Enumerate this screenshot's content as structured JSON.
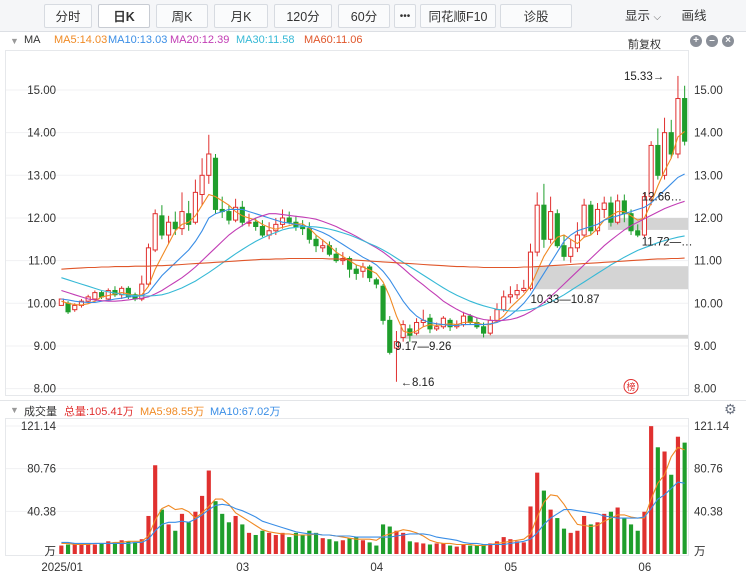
{
  "tabs": [
    {
      "label": "分时",
      "active": false
    },
    {
      "label": "日K",
      "active": true
    },
    {
      "label": "周K",
      "active": false
    },
    {
      "label": "月K",
      "active": false
    },
    {
      "label": "120分",
      "active": false
    },
    {
      "label": "60分",
      "active": false
    },
    {
      "label": "•••",
      "active": false
    },
    {
      "label": "同花顺F10",
      "active": false
    },
    {
      "label": "诊股",
      "active": false
    }
  ],
  "toolbar": {
    "display_label": "显示",
    "draw_label": "画线"
  },
  "price_panel": {
    "indicator": "MA",
    "ma_items": [
      {
        "label": "MA5:14.03",
        "color": "#f08a24"
      },
      {
        "label": "MA10:13.03",
        "color": "#3a8ee6"
      },
      {
        "label": "MA20:12.39",
        "color": "#c23db5"
      },
      {
        "label": "MA30:11.58",
        "color": "#36b9d6"
      },
      {
        "label": "MA60:11.06",
        "color": "#e0562a"
      }
    ],
    "adjust_label": "前复权",
    "y_ticks": [
      "15.00",
      "14.00",
      "13.00",
      "12.00",
      "11.00",
      "10.00",
      "9.00",
      "8.00"
    ],
    "annotations": [
      {
        "text": "15.33→"
      },
      {
        "text": "12.66…"
      },
      {
        "text": "11.72—…"
      },
      {
        "text": "10.33—10.87"
      },
      {
        "text": "9.17—9.26"
      },
      {
        "text": "←8.16"
      }
    ],
    "tag": "榜"
  },
  "volume_panel": {
    "title": "成交量",
    "items": [
      {
        "label": "总量:105.41万",
        "color": "#e0302f"
      },
      {
        "label": "MA5:98.55万",
        "color": "#f08a24"
      },
      {
        "label": "MA10:67.02万",
        "color": "#3a8ee6"
      }
    ],
    "y_ticks": [
      "121.14",
      "80.76",
      "40.38"
    ],
    "unit": "万"
  },
  "x_axis": {
    "labels": [
      "2025/01",
      "03",
      "04",
      "05",
      "06"
    ]
  },
  "colors": {
    "up": "#e0302f",
    "down": "#1f9e2c",
    "ma5": "#f08a24",
    "ma10": "#3a8ee6",
    "ma20": "#c23db5",
    "ma30": "#36b9d6",
    "ma60": "#e0562a"
  },
  "chart_data": {
    "type": "candlestick",
    "price_range": [
      7.85,
      15.75
    ],
    "volume_max": 121.14,
    "candles": [
      [
        9.95,
        10.1,
        9.95,
        10.1,
        8
      ],
      [
        10.0,
        9.8,
        9.75,
        10.05,
        9
      ],
      [
        9.85,
        9.95,
        9.8,
        10.0,
        10
      ],
      [
        9.95,
        10.05,
        9.9,
        10.1,
        9
      ],
      [
        10.05,
        10.15,
        10.0,
        10.2,
        10
      ],
      [
        10.1,
        10.25,
        10.1,
        10.3,
        9
      ],
      [
        10.25,
        10.15,
        10.1,
        10.3,
        10
      ],
      [
        10.1,
        10.3,
        10.05,
        10.35,
        12
      ],
      [
        10.3,
        10.2,
        10.15,
        10.4,
        11
      ],
      [
        10.2,
        10.35,
        10.1,
        10.4,
        13
      ],
      [
        10.35,
        10.15,
        10.1,
        10.4,
        12
      ],
      [
        10.2,
        10.1,
        10.05,
        10.25,
        11
      ],
      [
        10.1,
        10.45,
        10.05,
        10.65,
        14
      ],
      [
        10.45,
        11.3,
        10.4,
        11.4,
        36
      ],
      [
        11.25,
        12.1,
        11.2,
        12.2,
        84
      ],
      [
        12.05,
        11.6,
        11.5,
        12.3,
        42
      ],
      [
        11.6,
        11.9,
        11.4,
        12.05,
        28
      ],
      [
        11.9,
        11.75,
        11.6,
        12.15,
        22
      ],
      [
        11.75,
        12.15,
        11.6,
        12.6,
        38
      ],
      [
        12.1,
        11.85,
        11.7,
        12.4,
        30
      ],
      [
        11.9,
        12.6,
        11.85,
        12.9,
        40
      ],
      [
        12.55,
        13.0,
        12.3,
        13.4,
        55
      ],
      [
        13.0,
        13.5,
        12.8,
        13.95,
        79
      ],
      [
        13.4,
        12.2,
        12.1,
        13.5,
        50
      ],
      [
        12.2,
        12.15,
        12.0,
        12.5,
        38
      ],
      [
        12.15,
        11.95,
        11.85,
        12.3,
        30
      ],
      [
        11.95,
        12.25,
        11.9,
        12.45,
        36
      ],
      [
        12.25,
        11.9,
        11.8,
        12.4,
        28
      ],
      [
        11.9,
        11.9,
        11.8,
        12.1,
        20
      ],
      [
        11.9,
        11.8,
        11.7,
        12.0,
        18
      ],
      [
        11.8,
        11.6,
        11.55,
        11.95,
        22
      ],
      [
        11.6,
        11.7,
        11.5,
        11.9,
        20
      ],
      [
        11.7,
        11.85,
        11.6,
        12.0,
        18
      ],
      [
        11.85,
        12.0,
        11.75,
        12.2,
        20
      ],
      [
        12.0,
        11.9,
        11.85,
        12.15,
        16
      ],
      [
        11.9,
        11.8,
        11.7,
        12.05,
        20
      ],
      [
        11.8,
        11.75,
        11.6,
        11.95,
        18
      ],
      [
        11.75,
        11.5,
        11.4,
        11.9,
        22
      ],
      [
        11.5,
        11.35,
        11.2,
        11.6,
        20
      ],
      [
        11.3,
        11.35,
        11.2,
        11.5,
        15
      ],
      [
        11.35,
        11.15,
        11.1,
        11.45,
        14
      ],
      [
        11.15,
        11.0,
        10.95,
        11.3,
        12
      ],
      [
        11.0,
        11.05,
        10.9,
        11.2,
        13
      ],
      [
        11.05,
        10.8,
        10.6,
        11.1,
        15
      ],
      [
        10.8,
        10.7,
        10.55,
        10.9,
        16
      ],
      [
        10.75,
        10.85,
        10.6,
        10.95,
        13
      ],
      [
        10.85,
        10.6,
        10.5,
        10.9,
        11
      ],
      [
        10.55,
        10.45,
        10.35,
        10.6,
        8
      ],
      [
        10.4,
        9.6,
        9.5,
        10.45,
        28
      ],
      [
        9.6,
        8.85,
        8.8,
        9.7,
        26
      ],
      [
        8.95,
        9.1,
        8.16,
        9.35,
        22
      ],
      [
        9.2,
        9.5,
        9.1,
        9.6,
        20
      ],
      [
        9.4,
        9.25,
        9.1,
        9.5,
        12
      ],
      [
        9.3,
        9.55,
        9.25,
        9.65,
        11
      ],
      [
        9.55,
        9.6,
        9.45,
        9.85,
        10
      ],
      [
        9.65,
        9.4,
        9.3,
        9.75,
        9
      ],
      [
        9.4,
        9.45,
        9.35,
        9.55,
        10
      ],
      [
        9.45,
        9.65,
        9.4,
        9.7,
        10
      ],
      [
        9.6,
        9.45,
        9.35,
        9.65,
        8
      ],
      [
        9.45,
        9.5,
        9.4,
        9.6,
        7
      ],
      [
        9.5,
        9.7,
        9.45,
        9.8,
        9
      ],
      [
        9.7,
        9.55,
        9.5,
        9.75,
        8
      ],
      [
        9.55,
        9.45,
        9.4,
        9.65,
        8
      ],
      [
        9.45,
        9.3,
        9.2,
        9.55,
        9
      ],
      [
        9.3,
        9.6,
        9.25,
        9.7,
        10
      ],
      [
        9.6,
        9.85,
        9.55,
        10.0,
        12
      ],
      [
        9.85,
        10.15,
        9.8,
        10.3,
        16
      ],
      [
        10.15,
        10.2,
        10.0,
        10.4,
        14
      ],
      [
        10.2,
        10.3,
        10.1,
        10.45,
        12
      ],
      [
        10.3,
        10.35,
        10.25,
        10.55,
        11
      ],
      [
        10.35,
        11.2,
        10.3,
        11.4,
        45
      ],
      [
        11.2,
        12.3,
        11.1,
        12.6,
        77
      ],
      [
        12.3,
        11.5,
        11.3,
        12.8,
        60
      ],
      [
        11.5,
        12.15,
        11.4,
        12.5,
        42
      ],
      [
        12.1,
        11.35,
        11.3,
        12.2,
        34
      ],
      [
        11.35,
        11.1,
        11.0,
        11.6,
        24
      ],
      [
        11.1,
        11.3,
        10.95,
        11.5,
        20
      ],
      [
        11.3,
        11.6,
        11.2,
        11.9,
        22
      ],
      [
        11.6,
        12.3,
        11.55,
        12.45,
        36
      ],
      [
        12.3,
        11.7,
        11.6,
        12.4,
        28
      ],
      [
        11.7,
        12.2,
        11.6,
        12.35,
        30
      ],
      [
        12.2,
        12.35,
        12.0,
        12.5,
        38
      ],
      [
        12.35,
        11.9,
        11.8,
        12.5,
        40
      ],
      [
        11.9,
        12.4,
        11.85,
        12.55,
        44
      ],
      [
        12.4,
        12.1,
        11.9,
        12.55,
        34
      ],
      [
        12.1,
        11.7,
        11.6,
        12.2,
        28
      ],
      [
        11.7,
        11.6,
        11.55,
        11.85,
        22
      ],
      [
        11.6,
        12.5,
        11.55,
        12.6,
        40
      ],
      [
        12.5,
        13.7,
        12.3,
        13.8,
        121
      ],
      [
        13.7,
        13.0,
        12.9,
        14.1,
        101
      ],
      [
        13.0,
        14.0,
        12.9,
        14.35,
        97
      ],
      [
        14.0,
        13.5,
        13.4,
        14.3,
        75
      ],
      [
        13.5,
        14.8,
        13.4,
        15.33,
        111
      ],
      [
        14.8,
        13.8,
        13.7,
        15.1,
        105.41
      ]
    ],
    "ma_series": {
      "ma5": [
        10.05,
        10.0,
        9.97,
        9.96,
        9.99,
        10.05,
        10.15,
        10.18,
        10.22,
        10.25,
        10.22,
        10.18,
        10.2,
        10.4,
        10.8,
        11.1,
        11.4,
        11.7,
        11.85,
        11.9,
        12.05,
        12.3,
        12.55,
        12.5,
        12.4,
        12.3,
        12.15,
        12.05,
        12.0,
        11.95,
        11.85,
        11.78,
        11.74,
        11.78,
        11.82,
        11.86,
        11.86,
        11.76,
        11.6,
        11.48,
        11.35,
        11.2,
        11.1,
        11.0,
        10.9,
        10.85,
        10.78,
        10.7,
        10.5,
        10.15,
        9.7,
        9.35,
        9.3,
        9.35,
        9.45,
        9.5,
        9.48,
        9.5,
        9.52,
        9.5,
        9.55,
        9.56,
        9.54,
        9.5,
        9.5,
        9.58,
        9.7,
        9.9,
        10.05,
        10.2,
        10.4,
        10.75,
        11.1,
        11.35,
        11.55,
        11.6,
        11.5,
        11.4,
        11.55,
        11.6,
        11.75,
        11.95,
        12.05,
        12.15,
        12.15,
        12.05,
        11.95,
        12.0,
        12.35,
        12.75,
        13.1,
        13.4,
        13.9,
        14.03
      ],
      "ma10": [
        10.1,
        10.08,
        10.05,
        10.03,
        10.02,
        10.02,
        10.05,
        10.07,
        10.1,
        10.12,
        10.15,
        10.16,
        10.18,
        10.25,
        10.45,
        10.65,
        10.8,
        10.95,
        11.1,
        11.25,
        11.45,
        11.7,
        12.0,
        12.1,
        12.15,
        12.2,
        12.2,
        12.2,
        12.15,
        12.1,
        12.05,
        12.0,
        11.95,
        11.9,
        11.88,
        11.85,
        11.82,
        11.78,
        11.72,
        11.66,
        11.58,
        11.48,
        11.38,
        11.28,
        11.18,
        11.08,
        11.0,
        10.9,
        10.75,
        10.55,
        10.3,
        10.05,
        9.85,
        9.7,
        9.6,
        9.55,
        9.52,
        9.5,
        9.48,
        9.48,
        9.5,
        9.5,
        9.5,
        9.5,
        9.52,
        9.55,
        9.62,
        9.72,
        9.85,
        10.0,
        10.2,
        10.45,
        10.7,
        10.95,
        11.2,
        11.45,
        11.6,
        11.7,
        11.75,
        11.8,
        11.85,
        11.95,
        12.0,
        12.05,
        12.1,
        12.15,
        12.2,
        12.25,
        12.35,
        12.5,
        12.65,
        12.8,
        12.95,
        13.03
      ],
      "ma20": [
        10.3,
        10.25,
        10.2,
        10.15,
        10.1,
        10.08,
        10.06,
        10.05,
        10.05,
        10.06,
        10.08,
        10.1,
        10.12,
        10.15,
        10.22,
        10.3,
        10.4,
        10.5,
        10.6,
        10.72,
        10.85,
        11.0,
        11.15,
        11.3,
        11.45,
        11.6,
        11.72,
        11.82,
        11.92,
        12.0,
        12.05,
        12.1,
        12.1,
        12.08,
        12.06,
        12.04,
        12.02,
        12.0,
        11.97,
        11.92,
        11.86,
        11.8,
        11.72,
        11.65,
        11.57,
        11.48,
        11.39,
        11.3,
        11.2,
        11.08,
        10.95,
        10.82,
        10.68,
        10.55,
        10.43,
        10.3,
        10.18,
        10.05,
        9.95,
        9.86,
        9.78,
        9.72,
        9.66,
        9.62,
        9.6,
        9.59,
        9.6,
        9.62,
        9.66,
        9.72,
        9.8,
        9.9,
        10.02,
        10.16,
        10.3,
        10.45,
        10.6,
        10.75,
        10.9,
        11.05,
        11.2,
        11.35,
        11.48,
        11.6,
        11.72,
        11.82,
        11.9,
        11.98,
        12.06,
        12.14,
        12.22,
        12.28,
        12.34,
        12.39
      ],
      "ma30": [
        10.6,
        10.55,
        10.5,
        10.45,
        10.4,
        10.35,
        10.3,
        10.27,
        10.24,
        10.21,
        10.19,
        10.18,
        10.17,
        10.17,
        10.18,
        10.2,
        10.24,
        10.3,
        10.36,
        10.44,
        10.52,
        10.62,
        10.72,
        10.83,
        10.94,
        11.05,
        11.16,
        11.26,
        11.36,
        11.45,
        11.53,
        11.6,
        11.66,
        11.72,
        11.76,
        11.78,
        11.8,
        11.8,
        11.79,
        11.77,
        11.74,
        11.7,
        11.65,
        11.6,
        11.54,
        11.47,
        11.4,
        11.33,
        11.25,
        11.16,
        11.06,
        10.96,
        10.86,
        10.76,
        10.66,
        10.56,
        10.46,
        10.36,
        10.27,
        10.19,
        10.12,
        10.05,
        9.99,
        9.94,
        9.9,
        9.86,
        9.84,
        9.82,
        9.82,
        9.83,
        9.86,
        9.9,
        9.96,
        10.03,
        10.11,
        10.2,
        10.3,
        10.4,
        10.5,
        10.6,
        10.7,
        10.8,
        10.9,
        10.99,
        11.08,
        11.16,
        11.24,
        11.3,
        11.36,
        11.42,
        11.47,
        11.51,
        11.55,
        11.58
      ],
      "ma60": [
        10.8,
        10.81,
        10.82,
        10.83,
        10.84,
        10.84,
        10.85,
        10.85,
        10.86,
        10.86,
        10.86,
        10.87,
        10.87,
        10.87,
        10.88,
        10.88,
        10.89,
        10.9,
        10.91,
        10.92,
        10.93,
        10.94,
        10.95,
        10.96,
        10.97,
        10.98,
        10.99,
        11.0,
        11.01,
        11.02,
        11.03,
        11.03,
        11.04,
        11.04,
        11.05,
        11.05,
        11.05,
        11.05,
        11.05,
        11.05,
        11.04,
        11.04,
        11.03,
        11.02,
        11.01,
        11.0,
        10.99,
        10.98,
        10.97,
        10.96,
        10.95,
        10.94,
        10.93,
        10.92,
        10.91,
        10.9,
        10.89,
        10.88,
        10.87,
        10.86,
        10.86,
        10.85,
        10.85,
        10.84,
        10.84,
        10.84,
        10.84,
        10.84,
        10.84,
        10.85,
        10.85,
        10.86,
        10.87,
        10.88,
        10.89,
        10.9,
        10.91,
        10.92,
        10.93,
        10.94,
        10.95,
        10.96,
        10.97,
        10.98,
        10.99,
        11.0,
        11.01,
        11.02,
        11.03,
        11.04,
        11.04,
        11.05,
        11.05,
        11.06
      ]
    },
    "volume_ma5": [
      10,
      10,
      9,
      9,
      9,
      10,
      10,
      10,
      11,
      11,
      12,
      12,
      12,
      17,
      32,
      43,
      46,
      42,
      43,
      40,
      34,
      39,
      45,
      52,
      52,
      47,
      39,
      35,
      31,
      27,
      23,
      21,
      20,
      19,
      19,
      18,
      18,
      18,
      19,
      18,
      18,
      17,
      16,
      15,
      14,
      14,
      14,
      13,
      17,
      19,
      21,
      23,
      22,
      20,
      17,
      13,
      11,
      10,
      10,
      9,
      9,
      9,
      8,
      8,
      9,
      10,
      11,
      12,
      13,
      14,
      19,
      35,
      49,
      56,
      55,
      47,
      37,
      28,
      27,
      26,
      27,
      31,
      34,
      37,
      37,
      35,
      34,
      34,
      52,
      67,
      75,
      92,
      101,
      98.55
    ],
    "volume_ma10": [
      11,
      11,
      10,
      10,
      10,
      10,
      10,
      10,
      10,
      10,
      10,
      11,
      11,
      14,
      22,
      28,
      30,
      30,
      31,
      30,
      33,
      37,
      42,
      46,
      47,
      46,
      43,
      41,
      38,
      35,
      31,
      29,
      27,
      25,
      23,
      21,
      20,
      19,
      19,
      18,
      18,
      17,
      17,
      17,
      16,
      16,
      16,
      16,
      16,
      16,
      17,
      18,
      19,
      19,
      19,
      18,
      16,
      15,
      14,
      13,
      11,
      10,
      10,
      9,
      9,
      9,
      9,
      10,
      11,
      12,
      14,
      20,
      28,
      34,
      38,
      42,
      42,
      41,
      40,
      39,
      38,
      36,
      35,
      34,
      34,
      34,
      34,
      35,
      43,
      52,
      56,
      62,
      68,
      67.02
    ]
  }
}
